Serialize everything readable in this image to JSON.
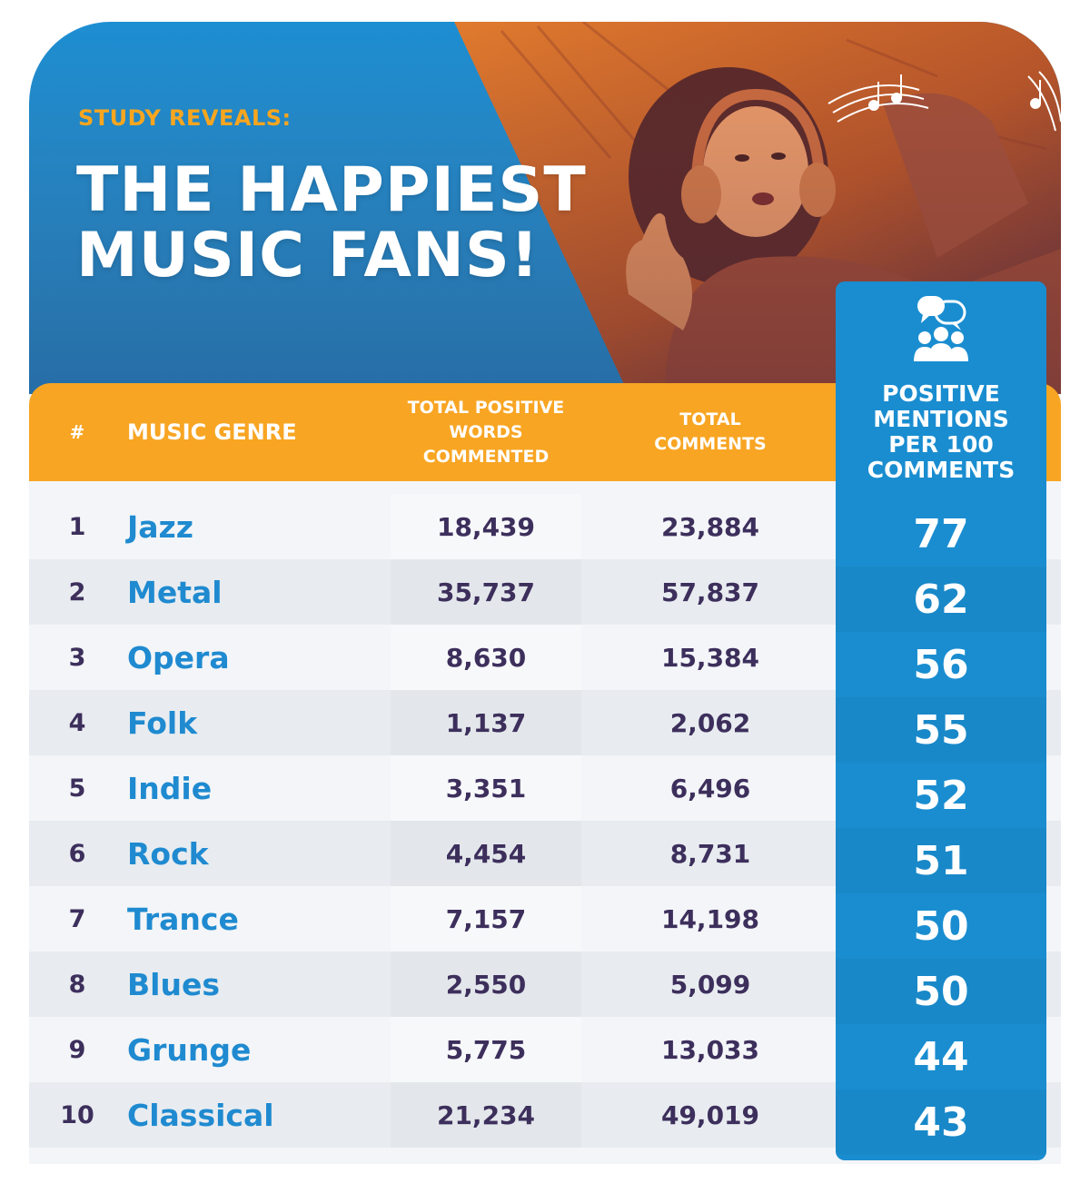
{
  "header": {
    "eyebrow": "STUDY REVEALS:",
    "title_line1": "THE HAPPIEST",
    "title_line2": "MUSIC FANS!"
  },
  "colors": {
    "brand_blue": "#1d8ed2",
    "accent_orange": "#f8a523",
    "text_dark": "#3d2f5c",
    "genre_blue": "#1f8ad0"
  },
  "icons": {
    "headphones_photo": "person-with-headphones-photo",
    "music_notes": "music-notes-icon",
    "group_chat": "group-chat-icon"
  },
  "chart_data": {
    "type": "table",
    "columns": {
      "rank": "#",
      "genre": "MUSIC GENRE",
      "words": [
        "TOTAL POSITIVE",
        "WORDS",
        "COMMENTED"
      ],
      "comments": [
        "TOTAL",
        "COMMENTS"
      ],
      "per100": [
        "POSITIVE",
        "MENTIONS",
        "PER 100",
        "COMMENTS"
      ]
    },
    "rows": [
      {
        "rank": "1",
        "genre": "Jazz",
        "words": "18,439",
        "comments": "23,884",
        "per100": "77"
      },
      {
        "rank": "2",
        "genre": "Metal",
        "words": "35,737",
        "comments": "57,837",
        "per100": "62"
      },
      {
        "rank": "3",
        "genre": "Opera",
        "words": "8,630",
        "comments": "15,384",
        "per100": "56"
      },
      {
        "rank": "4",
        "genre": "Folk",
        "words": "1,137",
        "comments": "2,062",
        "per100": "55"
      },
      {
        "rank": "5",
        "genre": "Indie",
        "words": "3,351",
        "comments": "6,496",
        "per100": "52"
      },
      {
        "rank": "6",
        "genre": "Rock",
        "words": "4,454",
        "comments": "8,731",
        "per100": "51"
      },
      {
        "rank": "7",
        "genre": "Trance",
        "words": "7,157",
        "comments": "14,198",
        "per100": "50"
      },
      {
        "rank": "8",
        "genre": "Blues",
        "words": "2,550",
        "comments": "5,099",
        "per100": "50"
      },
      {
        "rank": "9",
        "genre": "Grunge",
        "words": "5,775",
        "comments": "13,033",
        "per100": "44"
      },
      {
        "rank": "10",
        "genre": "Classical",
        "words": "21,234",
        "comments": "49,019",
        "per100": "43"
      }
    ]
  }
}
